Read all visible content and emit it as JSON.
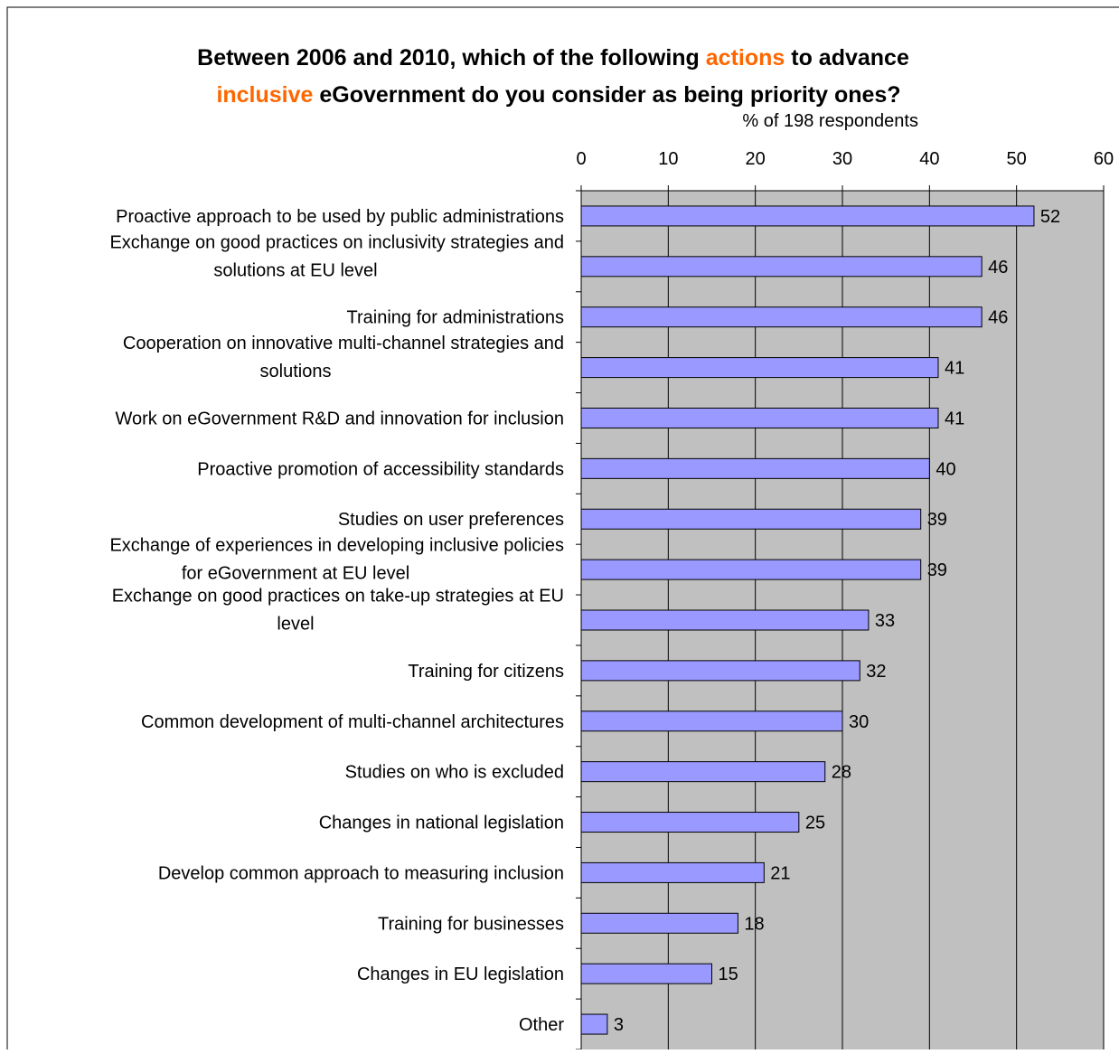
{
  "chart_data": {
    "type": "bar",
    "orientation": "horizontal",
    "title_parts": [
      {
        "text": "Between 2006 and 2010, which of the following ",
        "highlight": false
      },
      {
        "text": "actions",
        "highlight": true
      },
      {
        "text": " to advance",
        "highlight": false
      }
    ],
    "title_parts_line2": [
      {
        "text": "inclusive",
        "highlight": true
      },
      {
        "text": " eGovernment do you consider as being priority ones?",
        "highlight": false
      }
    ],
    "subtitle": "% of 198 respondents",
    "xlim": [
      0,
      60
    ],
    "ticks": [
      0,
      10,
      20,
      30,
      40,
      50,
      60
    ],
    "grid": true,
    "categories": [
      [
        "Proactive approach to be used by public administrations"
      ],
      [
        "Exchange on good practices on inclusivity strategies and",
        "solutions at EU level"
      ],
      [
        "Training for administrations"
      ],
      [
        "Cooperation on innovative multi-channel strategies and",
        "solutions"
      ],
      [
        "Work on eGovernment R&D and innovation for  inclusion"
      ],
      [
        "Proactive promotion of accessibility standards"
      ],
      [
        "Studies on user preferences"
      ],
      [
        "Exchange of experiences in developing inclusive policies",
        "for eGovernment at EU level"
      ],
      [
        "Exchange on good practices on take-up strategies at EU",
        "level"
      ],
      [
        "Training for citizens"
      ],
      [
        "Common development of multi-channel architectures"
      ],
      [
        "Studies on who is excluded"
      ],
      [
        "Changes in national legislation"
      ],
      [
        "Develop common approach to measuring inclusion"
      ],
      [
        "Training for businesses"
      ],
      [
        "Changes in EU legislation"
      ],
      [
        "Other"
      ]
    ],
    "values": [
      52,
      46,
      46,
      41,
      41,
      40,
      39,
      39,
      33,
      32,
      30,
      28,
      25,
      21,
      18,
      15,
      3
    ],
    "value_labels": [
      "52",
      "46",
      "46",
      "41",
      "41",
      "40",
      "39",
      "39",
      "33",
      "32",
      "30",
      "28",
      "25",
      "21",
      "18",
      "15",
      "3"
    ],
    "colors": {
      "bar": "#9999ff",
      "plot_bg": "#c0c0c0",
      "highlight": "#ff6600"
    }
  }
}
